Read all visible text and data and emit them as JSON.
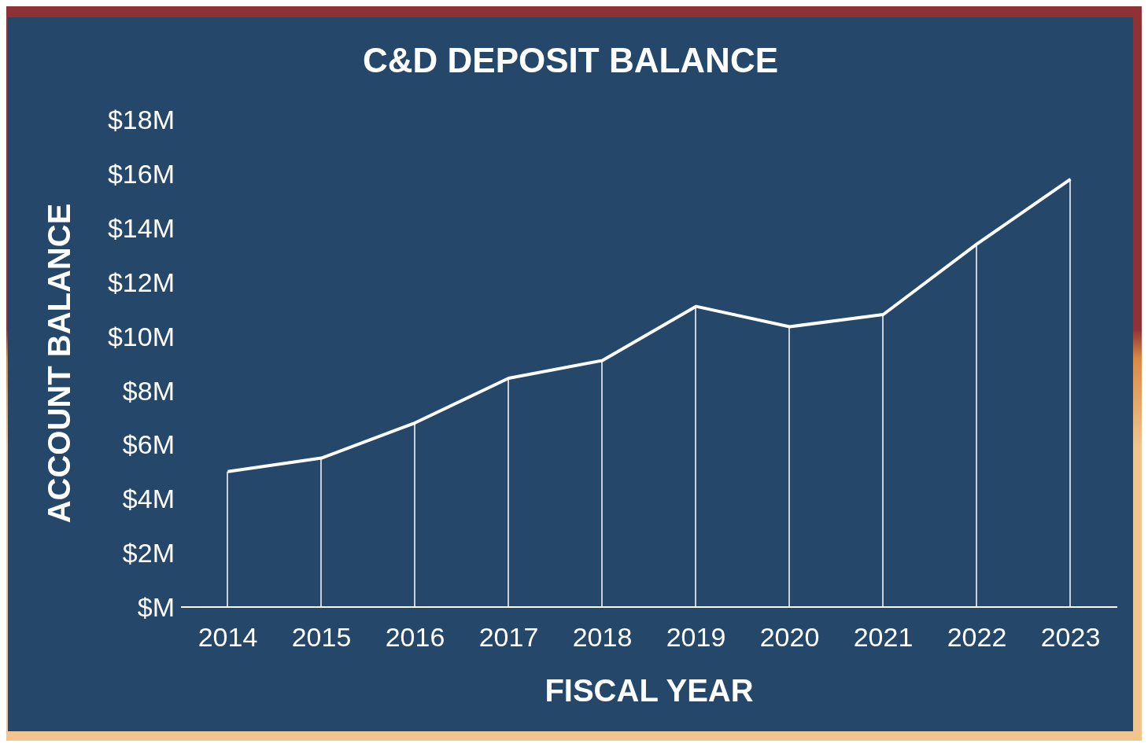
{
  "chart_data": {
    "type": "line",
    "title": "C&D DEPOSIT BALANCE",
    "xlabel": "FISCAL YEAR",
    "ylabel": "ACCOUNT BALANCE",
    "categories": [
      "2014",
      "2015",
      "2016",
      "2017",
      "2018",
      "2019",
      "2020",
      "2021",
      "2022",
      "2023"
    ],
    "series": [
      {
        "type": "bar",
        "color": "#c8d0da",
        "values": [
          5.0,
          5.5,
          6.8,
          8.45,
          9.1,
          11.1,
          10.35,
          10.8,
          13.4,
          15.8
        ]
      },
      {
        "color": "#ffffff",
        "values": [
          5.0,
          5.5,
          6.8,
          8.45,
          9.1,
          11.1,
          10.35,
          10.8,
          13.4,
          15.8
        ]
      }
    ],
    "ylim": [
      0,
      18
    ],
    "yticks": [
      {
        "value": 0,
        "label": "$M"
      },
      {
        "value": 2,
        "label": "$2M"
      },
      {
        "value": 4,
        "label": "$4M"
      },
      {
        "value": 6,
        "label": "$6M"
      },
      {
        "value": 8,
        "label": "$8M"
      },
      {
        "value": 10,
        "label": "$10M"
      },
      {
        "value": 12,
        "label": "$12M"
      },
      {
        "value": 14,
        "label": "$14M"
      },
      {
        "value": 16,
        "label": "$16M"
      },
      {
        "value": 18,
        "label": "$18M"
      }
    ],
    "grid": false,
    "legend": false,
    "marker": "none",
    "line_style": "solid"
  }
}
